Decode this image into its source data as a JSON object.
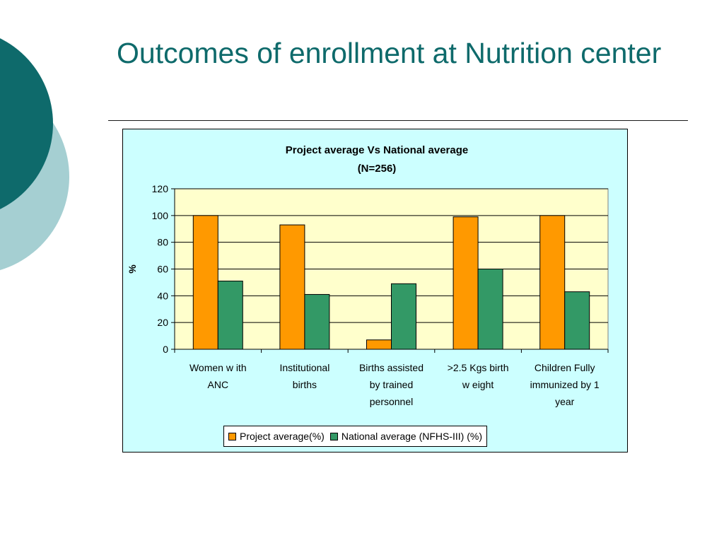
{
  "slide": {
    "title": "Outcomes of enrollment at Nutrition center",
    "colors": {
      "title": "#0e6a6b",
      "circle_dark": "#0e6a6b",
      "circle_light": "#a5cfd2"
    }
  },
  "chart_data": {
    "type": "bar",
    "title": "Project average Vs National average",
    "subtitle": "(N=256)",
    "xlabel": "",
    "ylabel": "%",
    "ylim": [
      0,
      120
    ],
    "yticks": [
      0,
      20,
      40,
      60,
      80,
      100,
      120
    ],
    "grid": true,
    "legend_position": "bottom",
    "plot_background": "#ffffcc",
    "frame_background": "#ccffff",
    "categories": [
      [
        "Women w ith",
        "ANC"
      ],
      [
        "Institutional",
        "births"
      ],
      [
        "Births assisted",
        "by trained",
        "personnel"
      ],
      [
        ">2.5 Kgs birth",
        "w eight"
      ],
      [
        "Children Fully",
        "immunized by 1",
        "year"
      ]
    ],
    "series": [
      {
        "name": "Project average(%)",
        "color": "#ff9900",
        "values": [
          100,
          93,
          7,
          99,
          100
        ]
      },
      {
        "name": "National average (NFHS-III) (%)",
        "color": "#339966",
        "values": [
          51,
          41,
          49,
          60,
          43
        ]
      }
    ]
  }
}
